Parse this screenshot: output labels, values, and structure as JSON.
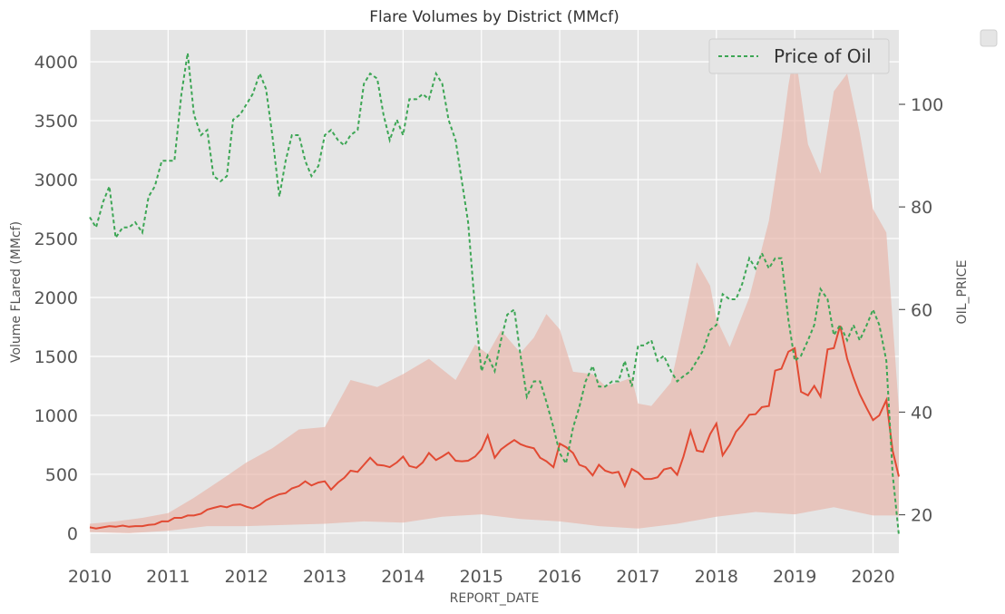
{
  "chart_data": {
    "type": "line",
    "title": "Flare Volumes by District (MMcf)",
    "xlabel": "REPORT_DATE",
    "ylabel": "Volume FLared (MMcf)",
    "y2label": "OIL_PRICE",
    "xlim": [
      2010.0,
      2020.33
    ],
    "ylim": [
      -170,
      4270
    ],
    "y2lim": [
      12.5,
      114.5
    ],
    "x_ticks": [
      "2010",
      "2011",
      "2012",
      "2013",
      "2014",
      "2015",
      "2016",
      "2017",
      "2018",
      "2019",
      "2020"
    ],
    "y_ticks": [
      "0",
      "500",
      "1000",
      "1500",
      "2000",
      "2500",
      "3000",
      "3500",
      "4000"
    ],
    "y2_ticks": [
      "20",
      "40",
      "60",
      "80",
      "100"
    ],
    "grid": true,
    "legend": {
      "position": "top-right",
      "entries": [
        "Price of Oil"
      ]
    },
    "colors": {
      "flare": "#E24A33",
      "band": "#E8B4A8",
      "oil": "#3DA655",
      "background": "#E5E5E5",
      "grid": "#FFFFFF"
    },
    "series": [
      {
        "key": "flare_mean",
        "axis": "left",
        "x": [
          2010.0,
          2010.08,
          2010.17,
          2010.25,
          2010.33,
          2010.42,
          2010.5,
          2010.58,
          2010.67,
          2010.75,
          2010.83,
          2010.92,
          2011.0,
          2011.08,
          2011.17,
          2011.25,
          2011.33,
          2011.42,
          2011.5,
          2011.58,
          2011.67,
          2011.75,
          2011.83,
          2011.92,
          2012.0,
          2012.08,
          2012.17,
          2012.25,
          2012.33,
          2012.42,
          2012.5,
          2012.58,
          2012.67,
          2012.75,
          2012.83,
          2012.92,
          2013.0,
          2013.08,
          2013.17,
          2013.25,
          2013.33,
          2013.42,
          2013.5,
          2013.58,
          2013.67,
          2013.75,
          2013.83,
          2013.92,
          2014.0,
          2014.08,
          2014.17,
          2014.25,
          2014.33,
          2014.42,
          2014.5,
          2014.58,
          2014.67,
          2014.75,
          2014.83,
          2014.92,
          2015.0,
          2015.08,
          2015.17,
          2015.25,
          2015.33,
          2015.42,
          2015.5,
          2015.58,
          2015.67,
          2015.75,
          2015.83,
          2015.92,
          2016.0,
          2016.08,
          2016.17,
          2016.25,
          2016.33,
          2016.42,
          2016.5,
          2016.58,
          2016.67,
          2016.75,
          2016.83,
          2016.92,
          2017.0,
          2017.08,
          2017.17,
          2017.25,
          2017.33,
          2017.42,
          2017.5,
          2017.58,
          2017.67,
          2017.75,
          2017.83,
          2017.92,
          2018.0,
          2018.08,
          2018.17,
          2018.25,
          2018.33,
          2018.42,
          2018.5,
          2018.58,
          2018.67,
          2018.75,
          2018.83,
          2018.92,
          2019.0,
          2019.08,
          2019.17,
          2019.25,
          2019.33,
          2019.42,
          2019.5,
          2019.58,
          2019.67,
          2019.75,
          2019.83,
          2019.92,
          2020.0,
          2020.08,
          2020.17,
          2020.25,
          2020.33
        ],
        "values": [
          50,
          40,
          50,
          60,
          55,
          65,
          55,
          60,
          60,
          70,
          75,
          100,
          100,
          130,
          130,
          150,
          150,
          165,
          200,
          215,
          230,
          220,
          240,
          245,
          225,
          210,
          240,
          280,
          305,
          330,
          340,
          380,
          400,
          440,
          405,
          430,
          440,
          370,
          430,
          470,
          530,
          520,
          580,
          640,
          580,
          575,
          560,
          600,
          650,
          570,
          555,
          600,
          680,
          620,
          650,
          685,
          615,
          610,
          615,
          650,
          710,
          830,
          640,
          710,
          750,
          790,
          755,
          735,
          720,
          640,
          610,
          560,
          760,
          730,
          680,
          580,
          560,
          490,
          580,
          530,
          510,
          520,
          400,
          545,
          515,
          460,
          460,
          475,
          540,
          555,
          495,
          650,
          865,
          700,
          690,
          840,
          930,
          660,
          750,
          860,
          920,
          1005,
          1010,
          1070,
          1080,
          1380,
          1395,
          1540,
          1570,
          1200,
          1170,
          1250,
          1160,
          1560,
          1570,
          1760,
          1480,
          1320,
          1180,
          1060,
          960,
          1000,
          1130,
          700,
          480
        ]
      },
      {
        "key": "flare_band_upper",
        "axis": "left",
        "x": [
          2010.0,
          2010.33,
          2010.67,
          2011.0,
          2011.33,
          2011.67,
          2012.0,
          2012.33,
          2012.67,
          2013.0,
          2013.33,
          2013.67,
          2014.0,
          2014.33,
          2014.67,
          2014.92,
          2015.08,
          2015.25,
          2015.5,
          2015.67,
          2015.83,
          2016.0,
          2016.17,
          2016.42,
          2016.58,
          2016.75,
          2016.92,
          2017.0,
          2017.17,
          2017.42,
          2017.58,
          2017.75,
          2017.92,
          2018.0,
          2018.17,
          2018.42,
          2018.67,
          2018.83,
          2018.92,
          2019.0,
          2019.17,
          2019.33,
          2019.5,
          2019.67,
          2019.83,
          2020.0,
          2020.17,
          2020.33
        ],
        "values": [
          80,
          100,
          130,
          170,
          300,
          450,
          600,
          720,
          880,
          900,
          1300,
          1240,
          1350,
          1480,
          1300,
          1600,
          1520,
          1720,
          1530,
          1660,
          1860,
          1730,
          1370,
          1350,
          1250,
          1280,
          1320,
          1100,
          1080,
          1280,
          1760,
          2300,
          2100,
          1820,
          1580,
          2000,
          2650,
          3350,
          3800,
          4100,
          3300,
          3050,
          3750,
          3900,
          3400,
          2750,
          2550,
          1050
        ]
      },
      {
        "key": "flare_band_lower",
        "axis": "left",
        "x": [
          2010.0,
          2010.5,
          2011.0,
          2011.5,
          2012.0,
          2012.5,
          2013.0,
          2013.5,
          2014.0,
          2014.5,
          2015.0,
          2015.5,
          2016.0,
          2016.5,
          2017.0,
          2017.5,
          2018.0,
          2018.5,
          2019.0,
          2019.5,
          2020.0,
          2020.33
        ],
        "values": [
          10,
          0,
          20,
          60,
          60,
          70,
          80,
          100,
          90,
          140,
          160,
          120,
          100,
          60,
          40,
          80,
          140,
          180,
          160,
          220,
          150,
          150
        ]
      },
      {
        "key": "oil_price",
        "name": "Price of Oil",
        "axis": "right",
        "x": [
          2010.0,
          2010.08,
          2010.17,
          2010.25,
          2010.33,
          2010.42,
          2010.5,
          2010.58,
          2010.67,
          2010.75,
          2010.83,
          2010.92,
          2011.0,
          2011.08,
          2011.17,
          2011.25,
          2011.33,
          2011.42,
          2011.5,
          2011.58,
          2011.67,
          2011.75,
          2011.83,
          2011.92,
          2012.0,
          2012.08,
          2012.17,
          2012.25,
          2012.33,
          2012.42,
          2012.5,
          2012.58,
          2012.67,
          2012.75,
          2012.83,
          2012.92,
          2013.0,
          2013.08,
          2013.17,
          2013.25,
          2013.33,
          2013.42,
          2013.5,
          2013.58,
          2013.67,
          2013.75,
          2013.83,
          2013.92,
          2014.0,
          2014.08,
          2014.17,
          2014.25,
          2014.33,
          2014.42,
          2014.5,
          2014.58,
          2014.67,
          2014.75,
          2014.83,
          2014.92,
          2015.0,
          2015.08,
          2015.17,
          2015.25,
          2015.33,
          2015.42,
          2015.5,
          2015.58,
          2015.67,
          2015.75,
          2015.83,
          2015.92,
          2016.0,
          2016.08,
          2016.17,
          2016.25,
          2016.33,
          2016.42,
          2016.5,
          2016.58,
          2016.67,
          2016.75,
          2016.83,
          2016.92,
          2017.0,
          2017.08,
          2017.17,
          2017.25,
          2017.33,
          2017.42,
          2017.5,
          2017.58,
          2017.67,
          2017.75,
          2017.83,
          2017.92,
          2018.0,
          2018.08,
          2018.17,
          2018.25,
          2018.33,
          2018.42,
          2018.5,
          2018.58,
          2018.67,
          2018.75,
          2018.83,
          2018.92,
          2019.0,
          2019.08,
          2019.17,
          2019.25,
          2019.33,
          2019.42,
          2019.5,
          2019.58,
          2019.67,
          2019.75,
          2019.83,
          2019.92,
          2020.0,
          2020.08,
          2020.17,
          2020.25,
          2020.33
        ],
        "values": [
          78,
          76,
          81,
          84,
          74,
          76,
          76,
          77,
          75,
          82,
          84,
          89,
          89,
          89,
          102,
          110,
          98,
          94,
          95,
          86,
          85,
          86,
          97,
          98,
          100,
          102,
          106,
          103,
          94,
          82,
          89,
          94,
          94,
          89,
          86,
          88,
          94,
          95,
          93,
          92,
          94,
          95,
          104,
          106,
          105,
          98,
          93,
          97,
          94,
          101,
          101,
          102,
          101,
          106,
          104,
          97,
          93,
          85,
          77,
          60,
          48,
          51,
          48,
          54,
          59,
          60,
          51,
          43,
          46,
          46,
          42,
          37,
          32,
          30,
          37,
          41,
          46,
          49,
          45,
          45,
          46,
          46,
          50,
          45,
          53,
          53,
          54,
          50,
          51,
          48,
          46,
          47,
          48,
          50,
          52,
          56,
          57,
          63,
          62,
          62,
          65,
          70,
          68,
          71,
          68,
          70,
          70,
          58,
          50,
          51,
          54,
          57,
          64,
          62,
          55,
          57,
          54,
          57,
          54,
          57,
          60,
          57,
          50,
          28,
          16
        ]
      }
    ]
  }
}
